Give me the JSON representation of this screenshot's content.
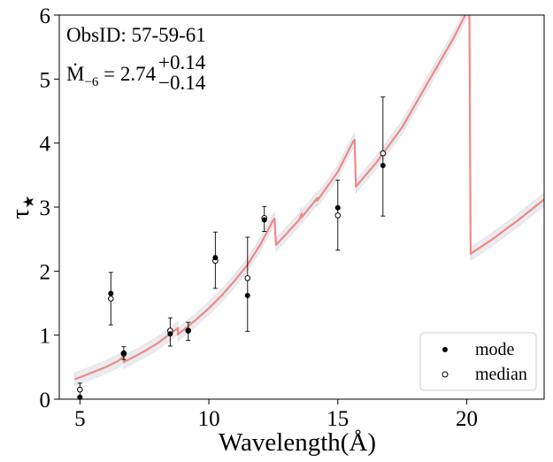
{
  "chart_data": {
    "type": "line",
    "xlabel": "Wavelength(Å)",
    "ylabel": "τ",
    "ylabel_sub": "★",
    "xlim": [
      4.2,
      23.0
    ],
    "ylim": [
      0,
      6
    ],
    "xticks": [
      5,
      10,
      15,
      20
    ],
    "yticks": [
      0,
      1,
      2,
      3,
      4,
      5,
      6
    ],
    "grid": false,
    "legend_position": "bottom-right",
    "annotations": {
      "obsid": "ObsID: 57-59-61",
      "mdot_symbol": "Ṁ",
      "mdot_sub": "−6",
      "mdot_eq": " = 2.74",
      "mdot_plus": "+0.14",
      "mdot_minus": "−0.14"
    },
    "colors": {
      "model_line": "#ee8a84",
      "band": "#e4e4ec",
      "points": "#000000"
    },
    "model_curve": [
      [
        4.8,
        0.31
      ],
      [
        5.5,
        0.42
      ],
      [
        6.0,
        0.5
      ],
      [
        6.5,
        0.6
      ],
      [
        6.7,
        0.67
      ],
      [
        6.7,
        0.58
      ],
      [
        7.0,
        0.64
      ],
      [
        7.5,
        0.75
      ],
      [
        8.0,
        0.87
      ],
      [
        8.5,
        1.02
      ],
      [
        8.8,
        1.11
      ],
      [
        8.8,
        1.01
      ],
      [
        9.5,
        1.24
      ],
      [
        10.0,
        1.42
      ],
      [
        10.5,
        1.62
      ],
      [
        11.0,
        1.85
      ],
      [
        11.5,
        2.1
      ],
      [
        12.0,
        2.42
      ],
      [
        12.5,
        2.8
      ],
      [
        12.55,
        2.82
      ],
      [
        12.6,
        2.41
      ],
      [
        13.0,
        2.58
      ],
      [
        13.5,
        2.8
      ],
      [
        13.6,
        2.9
      ],
      [
        13.6,
        2.84
      ],
      [
        14.0,
        3.04
      ],
      [
        14.2,
        3.14
      ],
      [
        14.2,
        3.1
      ],
      [
        15.0,
        3.55
      ],
      [
        15.6,
        4.03
      ],
      [
        15.65,
        4.05
      ],
      [
        15.7,
        3.32
      ],
      [
        16.5,
        3.7
      ],
      [
        17.5,
        4.25
      ],
      [
        18.5,
        4.95
      ],
      [
        19.5,
        5.65
      ],
      [
        20.0,
        6.05
      ],
      [
        20.1,
        6.05
      ],
      [
        20.15,
        2.27
      ],
      [
        21.0,
        2.5
      ],
      [
        22.0,
        2.8
      ],
      [
        23.0,
        3.12
      ]
    ],
    "band_halfwidth": 0.1,
    "series": [
      {
        "name": "mode",
        "marker": "filled",
        "points": [
          {
            "x": 5.0,
            "y": 0.03
          },
          {
            "x": 6.2,
            "y": 1.65
          },
          {
            "x": 6.7,
            "y": 0.72
          },
          {
            "x": 8.5,
            "y": 1.02
          },
          {
            "x": 9.2,
            "y": 1.07
          },
          {
            "x": 10.25,
            "y": 2.21
          },
          {
            "x": 11.5,
            "y": 1.62
          },
          {
            "x": 12.15,
            "y": 2.8
          },
          {
            "x": 15.0,
            "y": 2.99
          },
          {
            "x": 16.75,
            "y": 3.65
          }
        ]
      },
      {
        "name": "median",
        "marker": "open",
        "points": [
          {
            "x": 5.0,
            "y": 0.15,
            "lo": 0.05,
            "hi": 0.25
          },
          {
            "x": 6.2,
            "y": 1.57,
            "lo": 1.16,
            "hi": 1.98
          },
          {
            "x": 6.7,
            "y": 0.71,
            "lo": 0.62,
            "hi": 0.82
          },
          {
            "x": 8.5,
            "y": 1.07,
            "lo": 0.83,
            "hi": 1.27
          },
          {
            "x": 9.2,
            "y": 1.07,
            "lo": 0.92,
            "hi": 1.2
          },
          {
            "x": 10.25,
            "y": 2.16,
            "lo": 1.73,
            "hi": 2.61
          },
          {
            "x": 11.5,
            "y": 1.89,
            "lo": 1.06,
            "hi": 2.53
          },
          {
            "x": 12.15,
            "y": 2.83,
            "lo": 2.62,
            "hi": 3.01
          },
          {
            "x": 15.0,
            "y": 2.87,
            "lo": 2.33,
            "hi": 3.42
          },
          {
            "x": 16.75,
            "y": 3.84,
            "lo": 2.86,
            "hi": 4.72
          }
        ]
      }
    ]
  }
}
